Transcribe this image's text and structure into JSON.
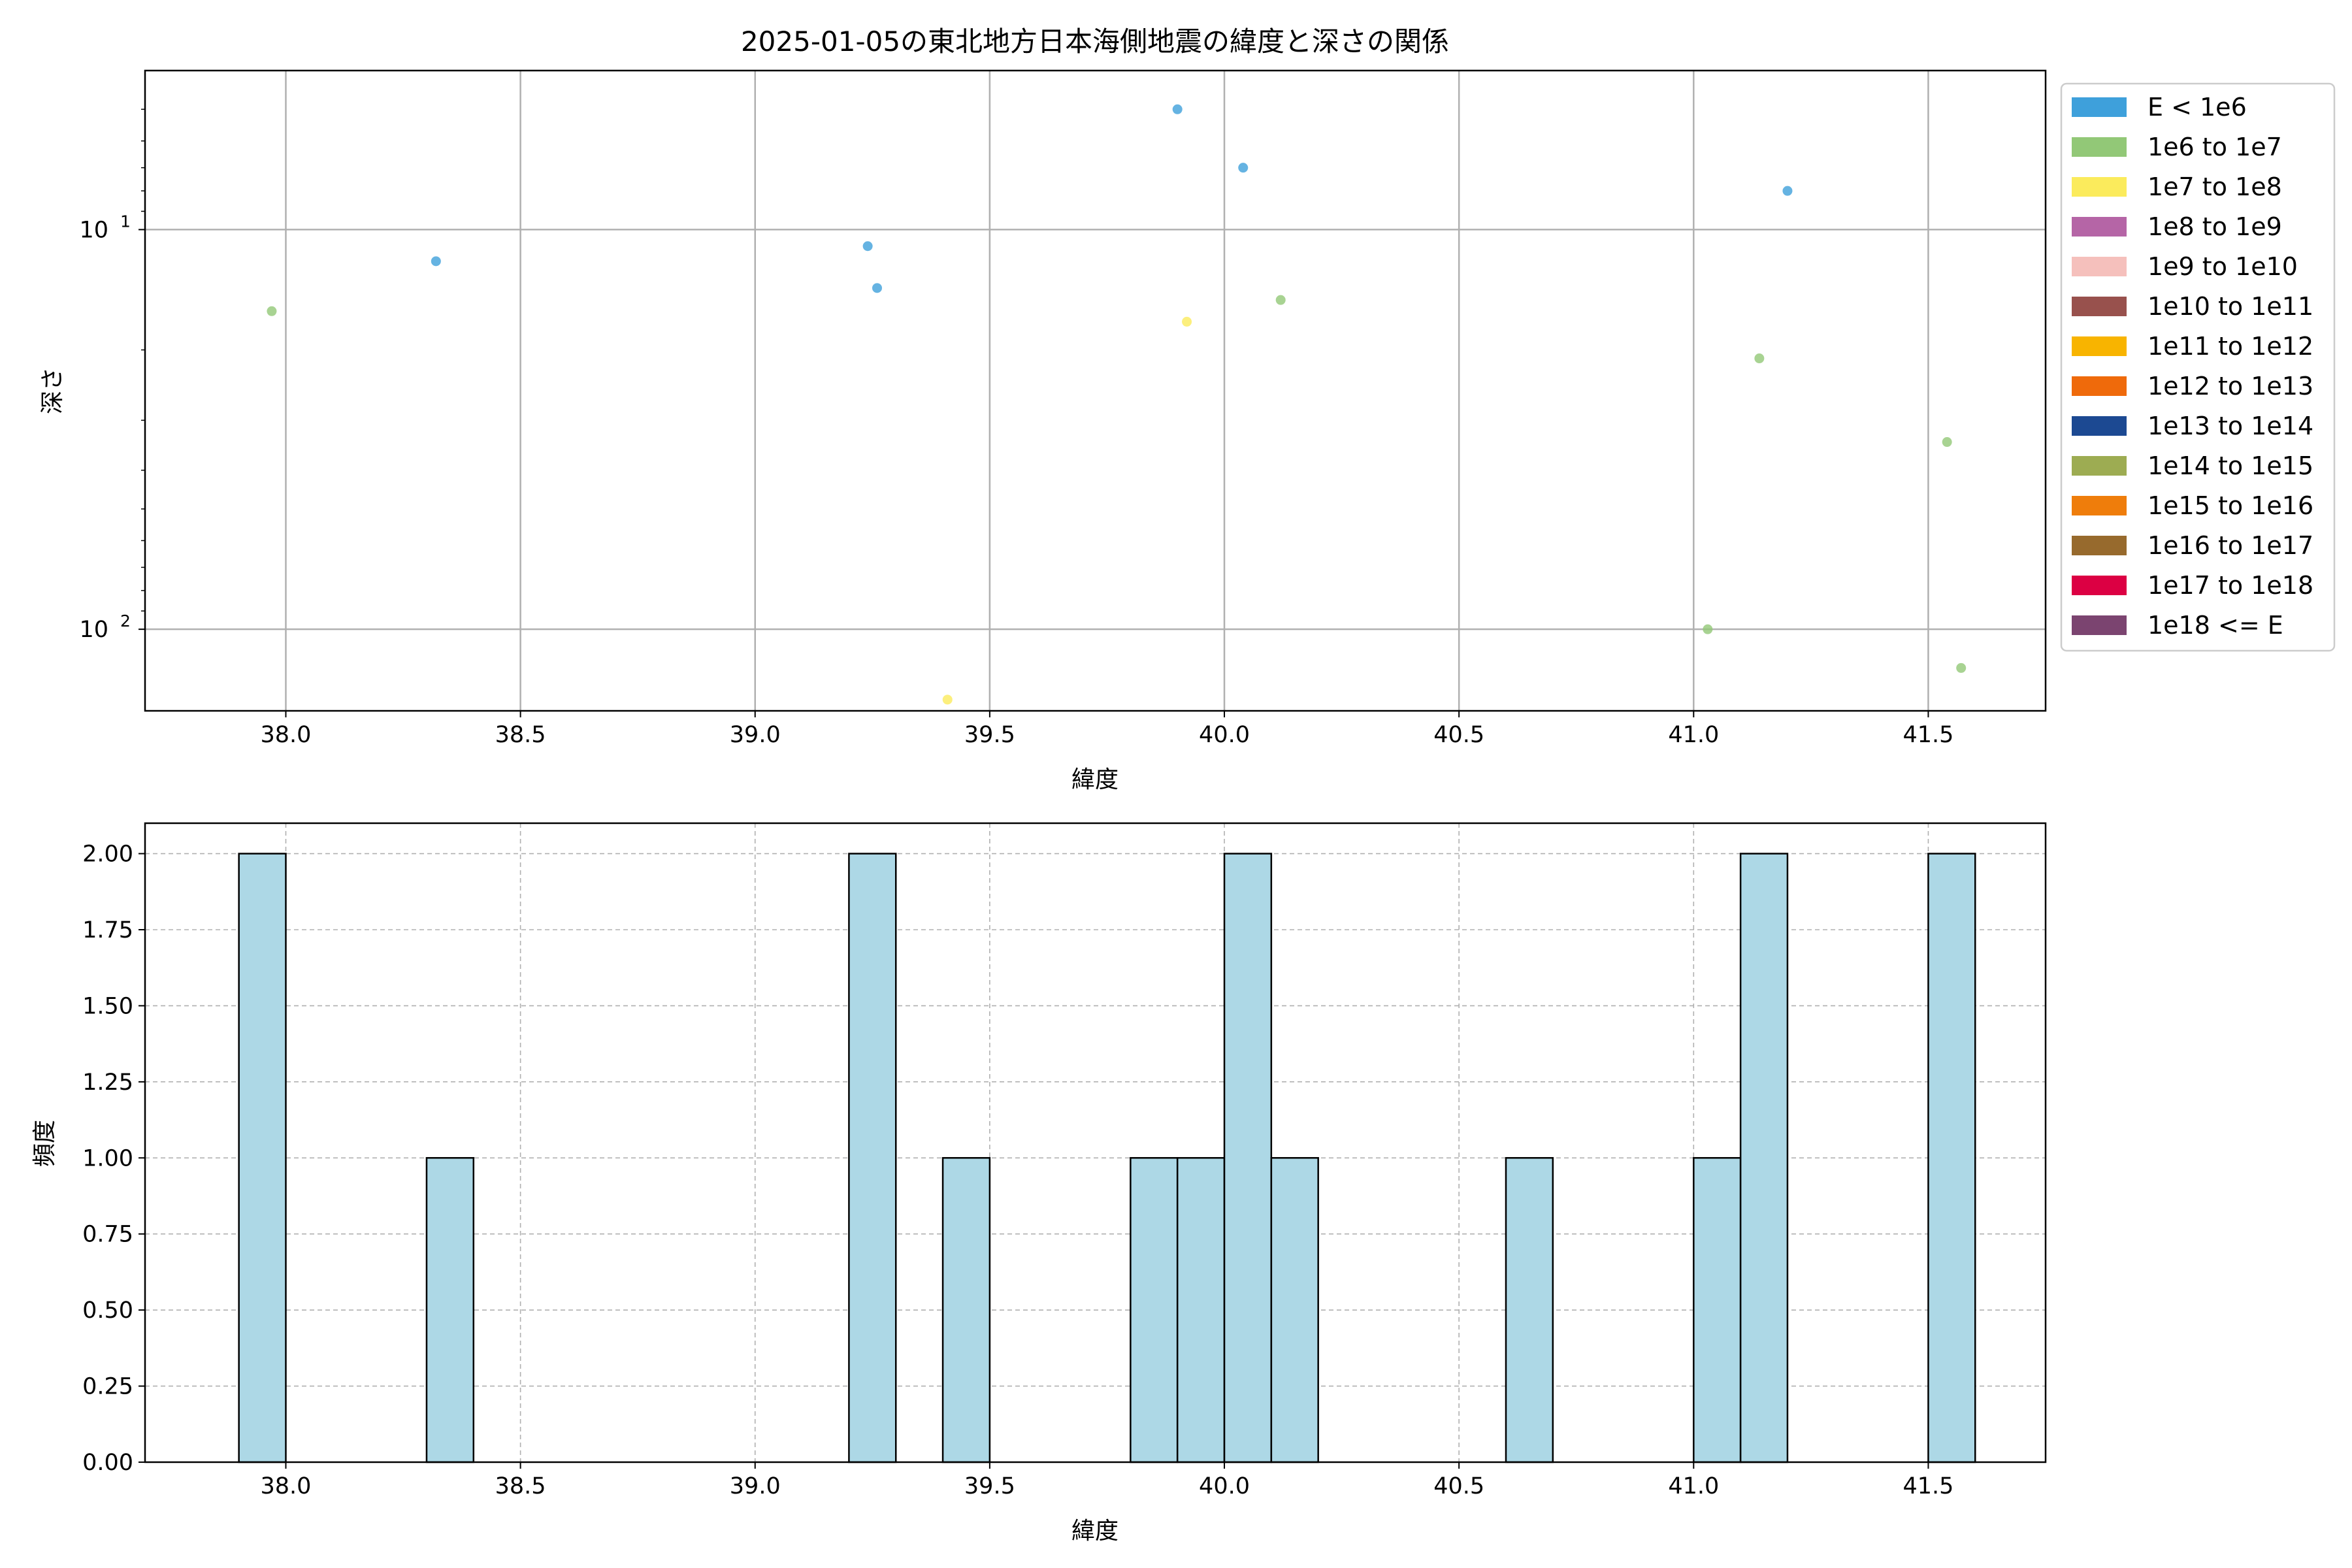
{
  "chart_data": [
    {
      "type": "scatter",
      "title": "2025-01-05の東北地方日本海側地震の緯度と深さの関係",
      "xlabel": "緯度",
      "ylabel": "深さ",
      "xlim": [
        37.7,
        41.75
      ],
      "ylim": [
        160,
        4
      ],
      "yscale": "log",
      "y_inverted": true,
      "grid": true,
      "xticks": [
        "38.0",
        "38.5",
        "39.0",
        "39.5",
        "40.0",
        "40.5",
        "41.0",
        "41.5"
      ],
      "yticks": [
        {
          "value": 10,
          "base": "10",
          "exp": "1"
        },
        {
          "value": 100,
          "base": "10",
          "exp": "2"
        }
      ],
      "legend": {
        "placement": "outside-right",
        "entries": [
          {
            "label": "E < 1e6",
            "color": "#3ea0db"
          },
          {
            "label": "1e6 to 1e7",
            "color": "#92c877"
          },
          {
            "label": "1e7 to 1e8",
            "color": "#fbeb5c"
          },
          {
            "label": "1e8 to 1e9",
            "color": "#b565a6"
          },
          {
            "label": "1e9 to 1e10",
            "color": "#f5c0bc"
          },
          {
            "label": "1e10 to 1e11",
            "color": "#98514d"
          },
          {
            "label": "1e11 to 1e12",
            "color": "#f8b400"
          },
          {
            "label": "1e12 to 1e13",
            "color": "#ef6a0b"
          },
          {
            "label": "1e13 to 1e14",
            "color": "#1c4992"
          },
          {
            "label": "1e14 to 1e15",
            "color": "#9dac52"
          },
          {
            "label": "1e15 to 1e16",
            "color": "#ef7d0b"
          },
          {
            "label": "1e16 to 1e17",
            "color": "#976a2d"
          },
          {
            "label": "1e17 to 1e18",
            "color": "#dc0043"
          },
          {
            "label": "1e18 <= E",
            "color": "#7b4470"
          }
        ]
      },
      "series": [
        {
          "class": 0,
          "points": [
            [
              38.32,
              12
            ],
            [
              39.24,
              11
            ],
            [
              39.26,
              14
            ],
            [
              39.9,
              5
            ],
            [
              40.04,
              7
            ],
            [
              41.2,
              8
            ]
          ]
        },
        {
          "class": 1,
          "points": [
            [
              37.97,
              16
            ],
            [
              40.12,
              15
            ],
            [
              41.14,
              21
            ],
            [
              41.54,
              34
            ],
            [
              41.03,
              100
            ],
            [
              41.57,
              125
            ]
          ]
        },
        {
          "class": 2,
          "points": [
            [
              39.92,
              17
            ],
            [
              39.41,
              150
            ]
          ]
        }
      ]
    },
    {
      "type": "bar",
      "subtype": "histogram",
      "xlabel": "緯度",
      "ylabel": "頻度",
      "xlim": [
        37.7,
        41.75
      ],
      "ylim": [
        0,
        2.1
      ],
      "grid": true,
      "bar_color": "#add8e6",
      "xticks": [
        "38.0",
        "38.5",
        "39.0",
        "39.5",
        "40.0",
        "40.5",
        "41.0",
        "41.5"
      ],
      "yticks": [
        "0.00",
        "0.25",
        "0.50",
        "0.75",
        "1.00",
        "1.25",
        "1.50",
        "1.75",
        "2.00"
      ],
      "bins": [
        {
          "start": 37.9,
          "end": 38.0,
          "value": 2
        },
        {
          "start": 38.3,
          "end": 38.4,
          "value": 1
        },
        {
          "start": 39.2,
          "end": 39.3,
          "value": 2
        },
        {
          "start": 39.4,
          "end": 39.5,
          "value": 1
        },
        {
          "start": 39.8,
          "end": 39.9,
          "value": 1
        },
        {
          "start": 39.9,
          "end": 40.0,
          "value": 1
        },
        {
          "start": 40.0,
          "end": 40.1,
          "value": 2
        },
        {
          "start": 40.1,
          "end": 40.2,
          "value": 1
        },
        {
          "start": 40.6,
          "end": 40.7,
          "value": 1
        },
        {
          "start": 41.0,
          "end": 41.1,
          "value": 1
        },
        {
          "start": 41.1,
          "end": 41.2,
          "value": 2
        },
        {
          "start": 41.5,
          "end": 41.6,
          "value": 2
        }
      ]
    }
  ]
}
